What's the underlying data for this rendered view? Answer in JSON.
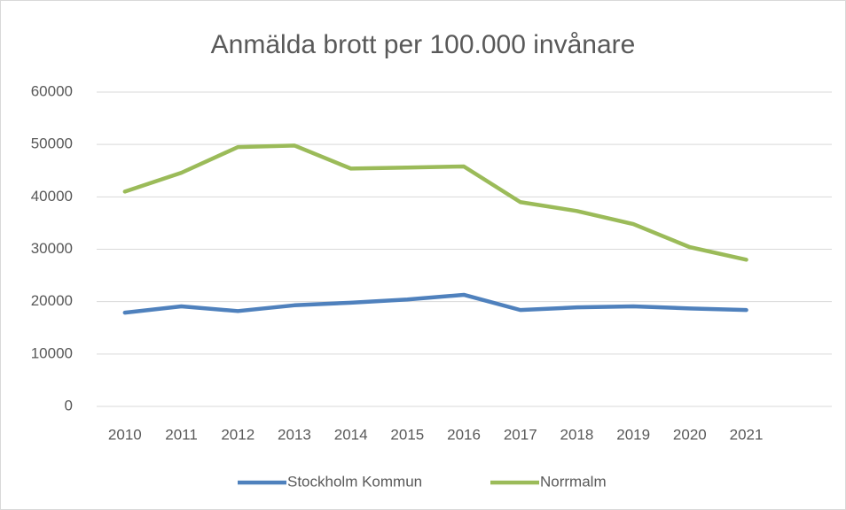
{
  "chart_data": {
    "type": "line",
    "title": "Anmälda brott per 100.000 invånare",
    "categories": [
      "2010",
      "2011",
      "2012",
      "2013",
      "2014",
      "2015",
      "2016",
      "2017",
      "2018",
      "2019",
      "2020",
      "2021"
    ],
    "series": [
      {
        "name": "Stockholm Kommun",
        "color": "#4f81bd",
        "values": [
          17900,
          19100,
          18200,
          19300,
          19800,
          20400,
          21300,
          18400,
          18900,
          19100,
          18700,
          18400
        ]
      },
      {
        "name": "Norrmalm",
        "color": "#9bbb59",
        "values": [
          41000,
          44600,
          49500,
          49800,
          45400,
          45600,
          45800,
          39000,
          37300,
          34800,
          30400,
          28000
        ]
      }
    ],
    "ylim": [
      0,
      60000
    ],
    "yticks": [
      0,
      10000,
      20000,
      30000,
      40000,
      50000,
      60000
    ],
    "grid": true,
    "legend": "bottom"
  }
}
